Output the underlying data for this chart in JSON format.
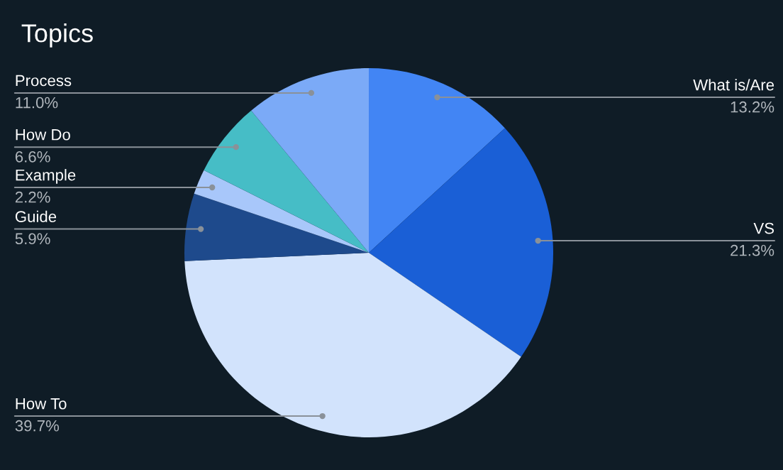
{
  "chart_data": {
    "type": "pie",
    "title": "Topics",
    "categories": [
      "What is/Are",
      "VS",
      "How To",
      "Guide",
      "Example",
      "How Do",
      "Process"
    ],
    "values": [
      13.2,
      21.3,
      39.7,
      5.9,
      2.2,
      6.6,
      11.0
    ],
    "value_labels": [
      "13.2%",
      "21.3%",
      "39.7%",
      "5.9%",
      "2.2%",
      "6.6%",
      "11.0%"
    ],
    "colors": [
      "#4285f4",
      "#1a5fd6",
      "#d2e3fc",
      "#1e4a8c",
      "#a8c7fa",
      "#46bdc6",
      "#7baaf7"
    ],
    "legend": false
  }
}
